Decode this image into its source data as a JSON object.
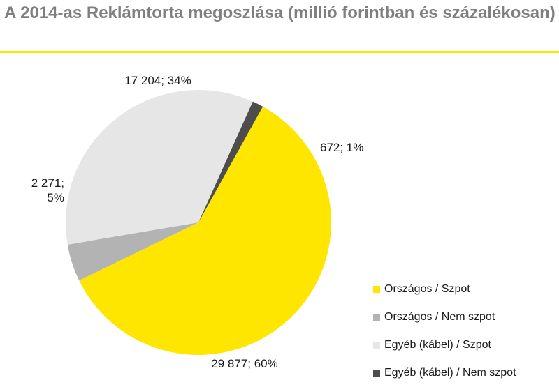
{
  "chart_data": {
    "type": "pie",
    "title": "A 2014-as Reklámtorta megoszlása (millió forintban és százalékosan)",
    "slices": [
      {
        "name": "Országos / Szpot",
        "value": 29877,
        "percent": 60,
        "label_lines": [
          "29 877; 60%"
        ],
        "color": "#ffe600"
      },
      {
        "name": "Országos / Nem szpot",
        "value": 2271,
        "percent": 5,
        "label_lines": [
          "2 271;",
          "5%"
        ],
        "color": "#b3b3b3"
      },
      {
        "name": "Egyéb (kábel) / Szpot",
        "value": 17204,
        "percent": 34,
        "label_lines": [
          "17 204; 34%"
        ],
        "color": "#e6e6e6"
      },
      {
        "name": "Egyéb (kábel) / Nem szpot",
        "value": 672,
        "percent": 1,
        "label_lines": [
          "672; 1%"
        ],
        "color": "#4d4d4d"
      }
    ],
    "legend": {
      "position": "bottom-right",
      "items": [
        {
          "label": "Országos / Szpot",
          "color": "#ffe600"
        },
        {
          "label": "Országos / Nem szpot",
          "color": "#b3b3b3"
        },
        {
          "label": "Egyéb (kábel) / Szpot",
          "color": "#e6e6e6"
        },
        {
          "label": "Egyéb (kábel) / Nem szpot",
          "color": "#4d4d4d"
        }
      ]
    }
  }
}
